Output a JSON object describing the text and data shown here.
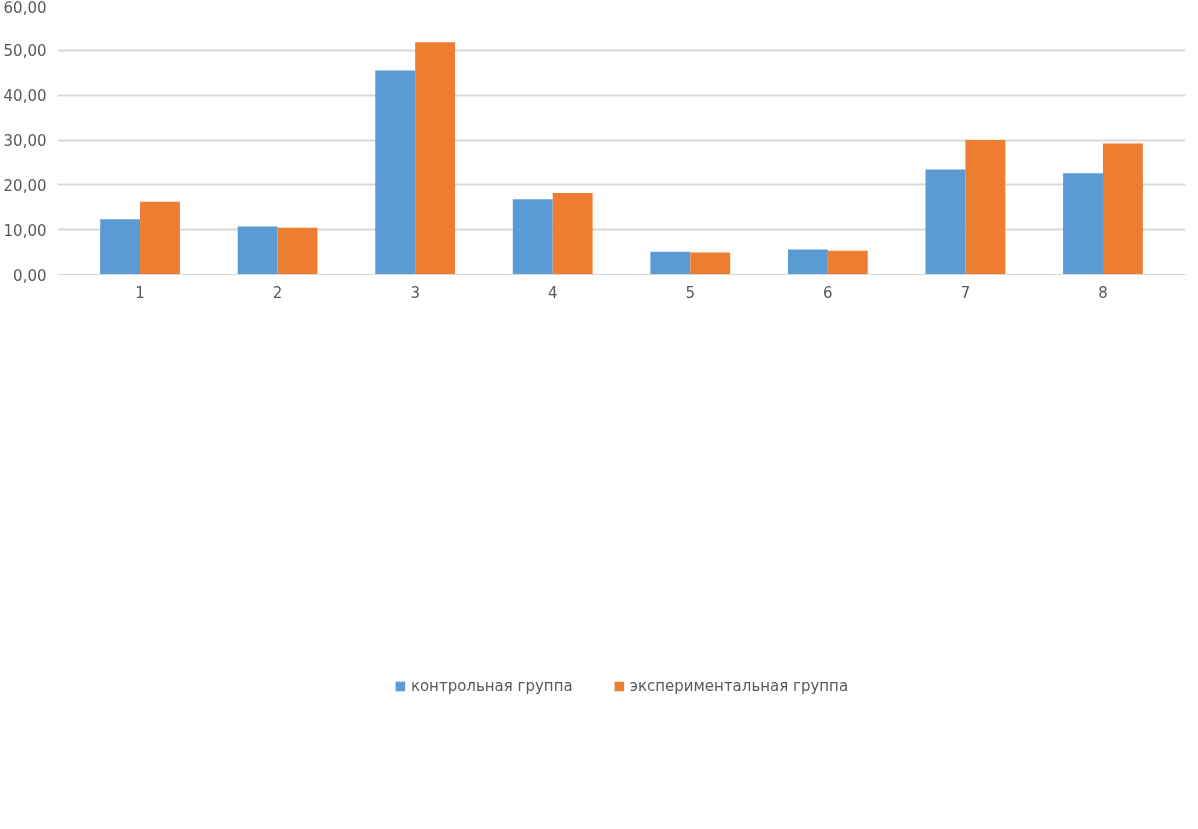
{
  "chart_data": {
    "type": "bar",
    "categories": [
      "1",
      "2",
      "3",
      "4",
      "5",
      "6",
      "7",
      "8"
    ],
    "series": [
      {
        "name": "контрольная группа",
        "color": "#5b9bd5",
        "values": [
          12.3,
          10.7,
          45.5,
          16.8,
          5.1,
          5.6,
          23.4,
          22.6
        ]
      },
      {
        "name": "экспериментальная группа",
        "color": "#ed7d31",
        "values": [
          16.2,
          10.4,
          51.8,
          18.2,
          4.9,
          5.3,
          30.0,
          29.2
        ]
      }
    ],
    "ylim": [
      0,
      60
    ],
    "yticks": [
      {
        "value": 0,
        "label": "0,00"
      },
      {
        "value": 10,
        "label": "10,00"
      },
      {
        "value": 20,
        "label": "20,00"
      },
      {
        "value": 30,
        "label": "30,00"
      },
      {
        "value": 40,
        "label": "40,00"
      },
      {
        "value": 50,
        "label": "50,00"
      },
      {
        "value": 60,
        "label": "60,00"
      }
    ],
    "grid": "y",
    "legend": "bottom"
  }
}
